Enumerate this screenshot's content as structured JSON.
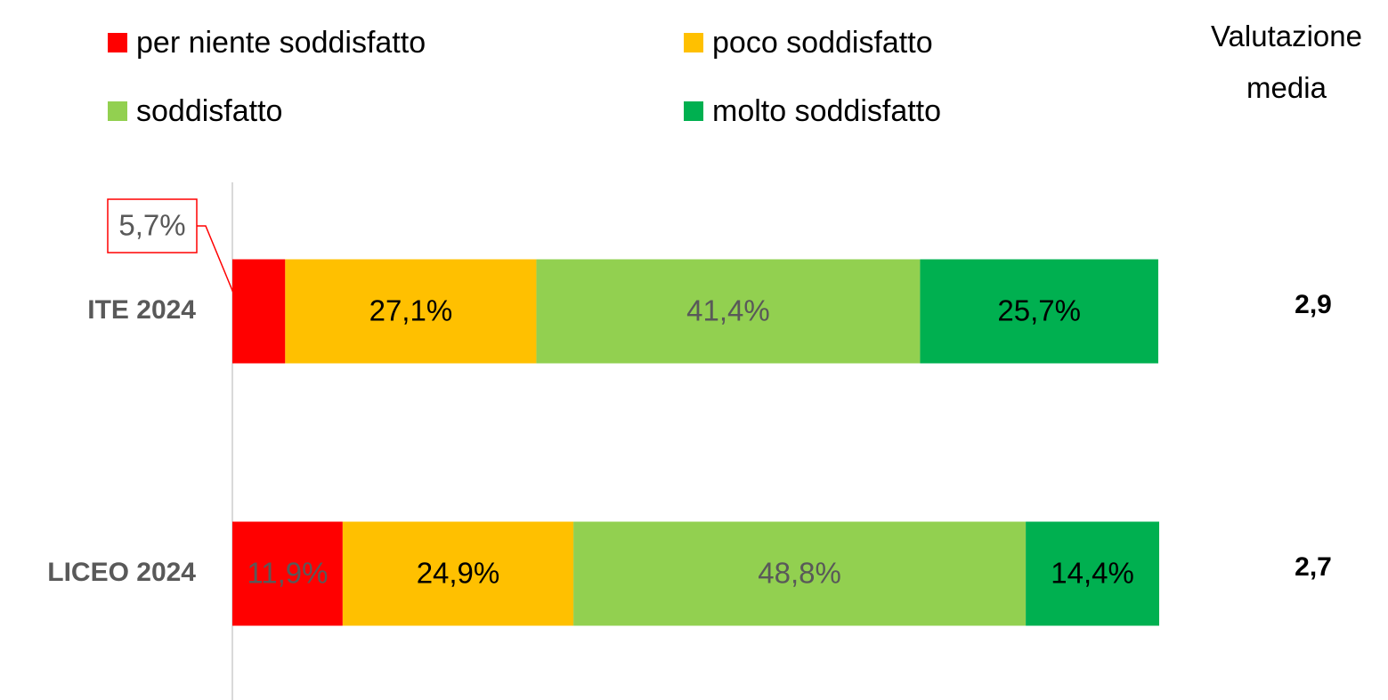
{
  "chart_data": {
    "type": "stacked_bar_horizontal",
    "categories": [
      "ITE 2024",
      "LICEO 2024"
    ],
    "series": [
      {
        "name": "per niente soddisfatto",
        "color": "#ff0000",
        "values": [
          5.7,
          11.9
        ],
        "value_labels": [
          "5,7%",
          "11,9%"
        ]
      },
      {
        "name": "poco soddisfatto",
        "color": "#ffc000",
        "values": [
          27.1,
          24.9
        ],
        "value_labels": [
          "27,1%",
          "24,9%"
        ]
      },
      {
        "name": "soddisfatto",
        "color": "#92d050",
        "values": [
          41.4,
          48.8
        ],
        "value_labels": [
          "41,4%",
          "48,8%"
        ]
      },
      {
        "name": "molto soddisfatto",
        "color": "#00b050",
        "values": [
          25.7,
          14.4
        ],
        "value_labels": [
          "25,7%",
          "14,4%"
        ]
      }
    ],
    "xlim": [
      0,
      100
    ],
    "mean_title": "Valutazione media",
    "mean_ratings": [
      "2,9",
      "2,7"
    ]
  }
}
